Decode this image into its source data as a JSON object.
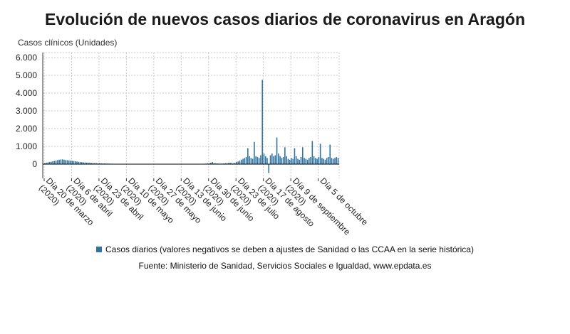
{
  "colors": {
    "bar": "#2f73a0",
    "grid": "#c8c8c8",
    "axis": "#333333"
  },
  "chart_data": {
    "type": "bar",
    "title": "Evolución de nuevos casos diarios de coronavirus en Aragón",
    "ylabel": "Casos clínicos (Unidades)",
    "ylim": [
      -600,
      6300
    ],
    "yticks": [
      0,
      1000,
      2000,
      3000,
      4000,
      5000,
      6000
    ],
    "ytick_labels": [
      "0",
      "1.000",
      "2.000",
      "3.000",
      "4.000",
      "5.000",
      "6.000"
    ],
    "grid": true,
    "xtick_labels": [
      {
        "day": 0,
        "label": "Día 20 de marzo (2020)"
      },
      {
        "day": 17,
        "label": "Día 6 de abril (2020)"
      },
      {
        "day": 34,
        "label": "Día 23 de abril (2020)"
      },
      {
        "day": 51,
        "label": "Día 10 de mayo (2020)"
      },
      {
        "day": 68,
        "label": "Día 27 de mayo (2020)"
      },
      {
        "day": 85,
        "label": "Día 13 de junio (2020)"
      },
      {
        "day": 102,
        "label": "Día 30 de junio (2020)"
      },
      {
        "day": 119,
        "label": "Día 23 de julio (2020)"
      },
      {
        "day": 136,
        "label": "Día 17 de agosto (2020)"
      },
      {
        "day": 153,
        "label": "Día 9 de septiembre (2020)"
      },
      {
        "day": 170,
        "label": "Día 5 de octubre"
      }
    ],
    "series": [
      {
        "name": "Casos diarios (valores negativos se deben a ajustes de Sanidad o las CCAA en la serie histórica)",
        "values": [
          60,
          80,
          100,
          120,
          140,
          160,
          180,
          200,
          230,
          250,
          260,
          270,
          250,
          230,
          220,
          210,
          200,
          190,
          170,
          160,
          150,
          130,
          120,
          110,
          100,
          95,
          90,
          85,
          80,
          70,
          65,
          60,
          55,
          50,
          50,
          45,
          40,
          40,
          35,
          30,
          30,
          25,
          25,
          20,
          20,
          20,
          15,
          15,
          15,
          10,
          10,
          10,
          10,
          10,
          10,
          10,
          10,
          8,
          8,
          8,
          8,
          8,
          5,
          5,
          5,
          5,
          5,
          5,
          5,
          5,
          5,
          5,
          5,
          5,
          5,
          5,
          5,
          5,
          5,
          5,
          5,
          5,
          5,
          5,
          5,
          5,
          5,
          5,
          5,
          5,
          5,
          5,
          10,
          10,
          10,
          10,
          10,
          15,
          20,
          25,
          30,
          40,
          50,
          80,
          120,
          60,
          50,
          40,
          30,
          30,
          30,
          40,
          50,
          60,
          70,
          80,
          60,
          50,
          70,
          120,
          150,
          200,
          250,
          300,
          350,
          400,
          900,
          450,
          350,
          300,
          1250,
          450,
          400,
          350,
          500,
          4750,
          600,
          450,
          350,
          -500,
          500,
          600,
          450,
          500,
          1500,
          600,
          450,
          350,
          400,
          950,
          450,
          300,
          250,
          350,
          300,
          900,
          450,
          300,
          250,
          400,
          950,
          350,
          300,
          250,
          350,
          400,
          1300,
          450,
          350,
          300,
          400,
          1150,
          350,
          300,
          250,
          350,
          400,
          1100,
          350,
          300,
          350,
          400,
          350
        ]
      }
    ]
  },
  "legend": {
    "label": "Casos diarios (valores negativos se deben a ajustes de Sanidad o las CCAA en la serie histórica)"
  },
  "source": "Fuente: Ministerio de Sanidad, Servicios Sociales e Igualdad, www.epdata.es"
}
